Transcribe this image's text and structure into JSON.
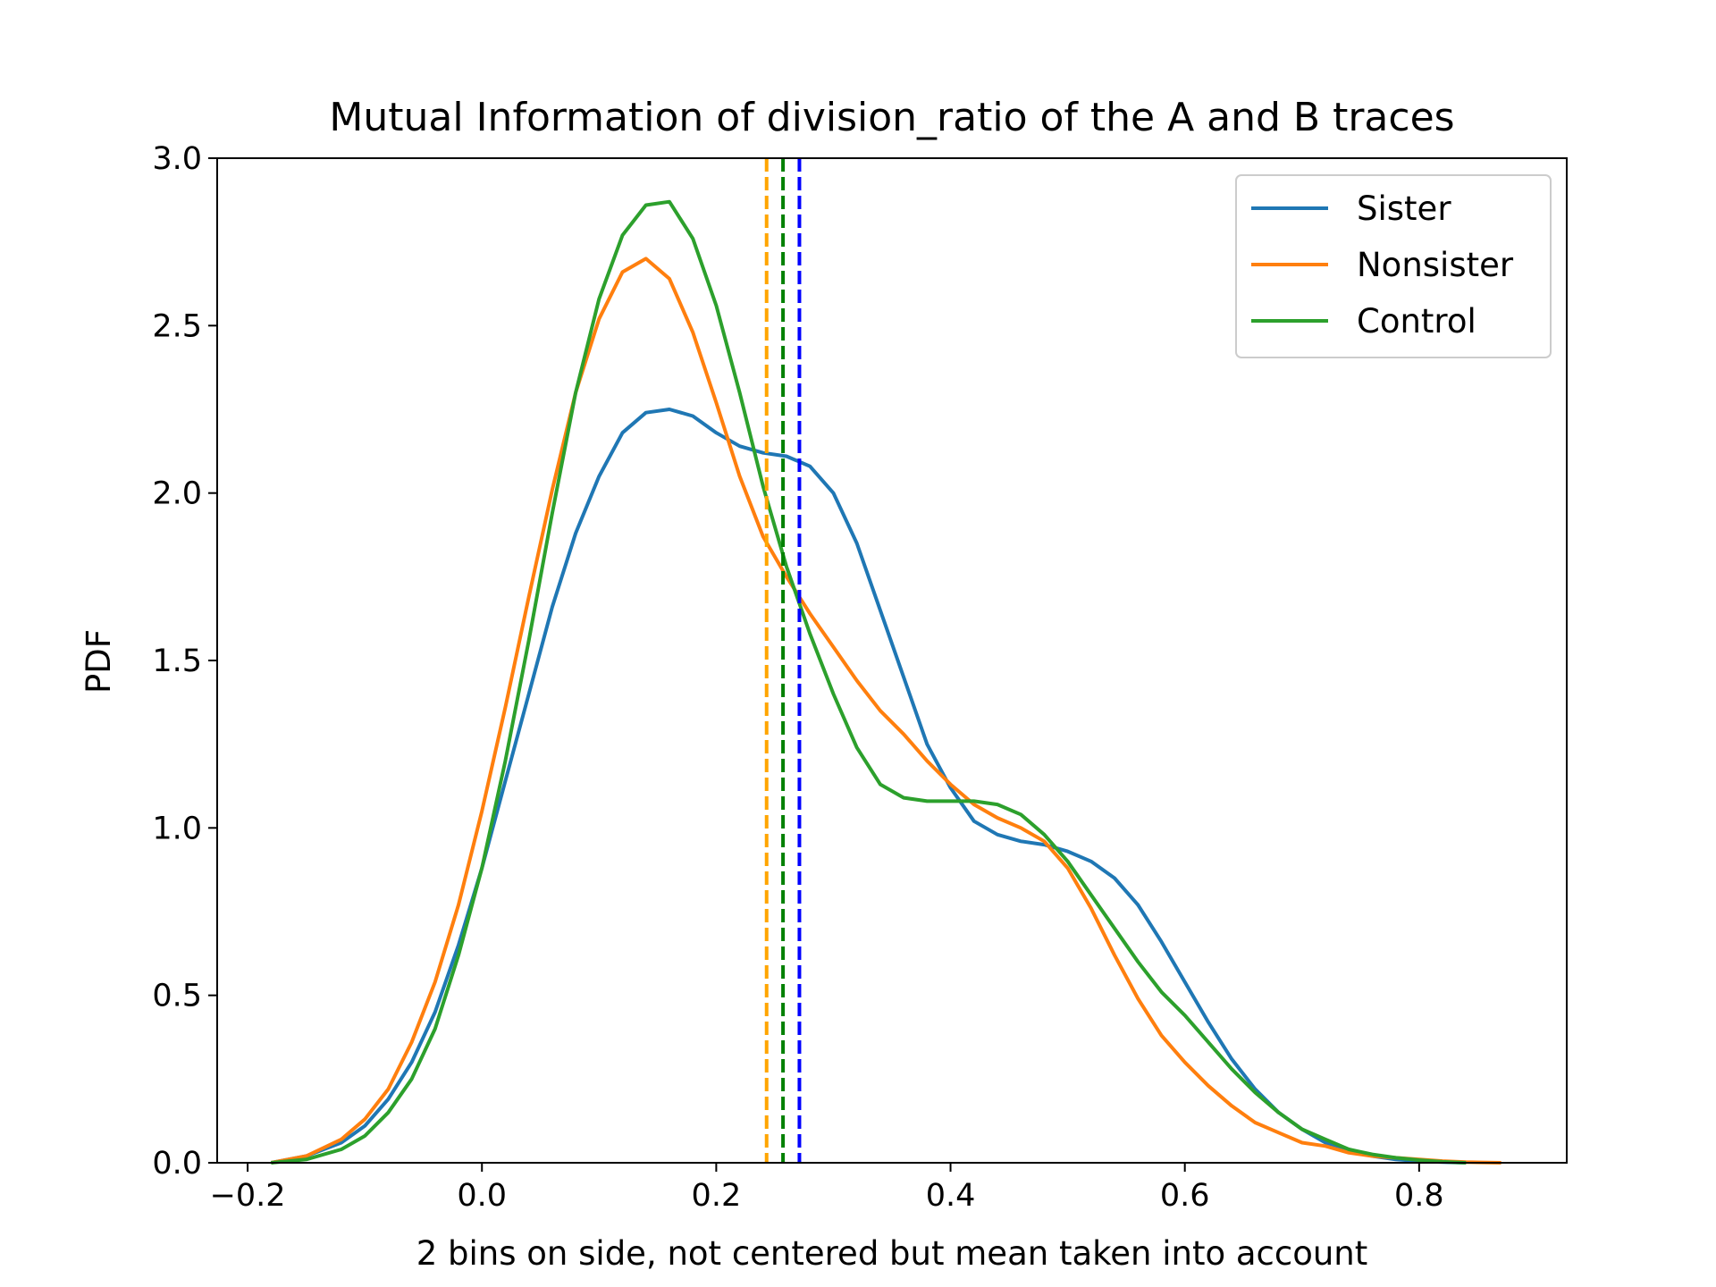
{
  "chart_data": {
    "type": "line",
    "title": "Mutual Information of division_ratio of the A and B traces",
    "xlabel": "2 bins on side, not centered but mean taken into account",
    "ylabel": "PDF",
    "xlim": [
      -0.226,
      0.926
    ],
    "ylim": [
      0.0,
      3.0
    ],
    "xticks": [
      -0.2,
      0.0,
      0.2,
      0.4,
      0.6,
      0.8
    ],
    "xtick_labels": [
      "−0.2",
      "0.0",
      "0.2",
      "0.4",
      "0.6",
      "0.8"
    ],
    "yticks": [
      0.0,
      0.5,
      1.0,
      1.5,
      2.0,
      2.5,
      3.0
    ],
    "ytick_labels": [
      "0.0",
      "0.5",
      "1.0",
      "1.5",
      "2.0",
      "2.5",
      "3.0"
    ],
    "grid": false,
    "legend_position": "top-right",
    "series": [
      {
        "name": "Sister",
        "color": "#1f77b4",
        "x": [
          -0.18,
          -0.15,
          -0.12,
          -0.1,
          -0.08,
          -0.06,
          -0.04,
          -0.02,
          0.0,
          0.02,
          0.04,
          0.06,
          0.08,
          0.1,
          0.12,
          0.14,
          0.16,
          0.18,
          0.2,
          0.22,
          0.24,
          0.26,
          0.28,
          0.3,
          0.32,
          0.34,
          0.36,
          0.38,
          0.4,
          0.42,
          0.44,
          0.46,
          0.48,
          0.5,
          0.52,
          0.54,
          0.56,
          0.58,
          0.6,
          0.62,
          0.64,
          0.66,
          0.68,
          0.7,
          0.72,
          0.74,
          0.76,
          0.78,
          0.8,
          0.82,
          0.84
        ],
        "y": [
          0.0,
          0.02,
          0.06,
          0.11,
          0.19,
          0.3,
          0.45,
          0.65,
          0.88,
          1.14,
          1.4,
          1.66,
          1.88,
          2.05,
          2.18,
          2.24,
          2.25,
          2.23,
          2.18,
          2.14,
          2.12,
          2.11,
          2.08,
          2.0,
          1.85,
          1.65,
          1.45,
          1.25,
          1.12,
          1.02,
          0.98,
          0.96,
          0.95,
          0.93,
          0.9,
          0.85,
          0.77,
          0.66,
          0.54,
          0.42,
          0.31,
          0.22,
          0.15,
          0.1,
          0.06,
          0.04,
          0.02,
          0.01,
          0.005,
          0.002,
          0.0
        ]
      },
      {
        "name": "Nonsister",
        "color": "#ff7f0e",
        "x": [
          -0.18,
          -0.15,
          -0.12,
          -0.1,
          -0.08,
          -0.06,
          -0.04,
          -0.02,
          0.0,
          0.02,
          0.04,
          0.06,
          0.08,
          0.1,
          0.12,
          0.14,
          0.16,
          0.18,
          0.2,
          0.22,
          0.24,
          0.26,
          0.28,
          0.3,
          0.32,
          0.34,
          0.36,
          0.38,
          0.4,
          0.42,
          0.44,
          0.46,
          0.48,
          0.5,
          0.52,
          0.54,
          0.56,
          0.58,
          0.6,
          0.62,
          0.64,
          0.66,
          0.68,
          0.7,
          0.72,
          0.74,
          0.76,
          0.78,
          0.8,
          0.82,
          0.84,
          0.87
        ],
        "y": [
          0.0,
          0.02,
          0.07,
          0.13,
          0.22,
          0.36,
          0.54,
          0.77,
          1.05,
          1.36,
          1.69,
          2.01,
          2.3,
          2.52,
          2.66,
          2.7,
          2.64,
          2.48,
          2.27,
          2.05,
          1.87,
          1.75,
          1.64,
          1.54,
          1.44,
          1.35,
          1.28,
          1.2,
          1.13,
          1.07,
          1.03,
          1.0,
          0.96,
          0.88,
          0.76,
          0.62,
          0.49,
          0.38,
          0.3,
          0.23,
          0.17,
          0.12,
          0.09,
          0.06,
          0.05,
          0.03,
          0.02,
          0.015,
          0.01,
          0.005,
          0.002,
          0.0
        ]
      },
      {
        "name": "Control",
        "color": "#2ca02c",
        "x": [
          -0.18,
          -0.15,
          -0.12,
          -0.1,
          -0.08,
          -0.06,
          -0.04,
          -0.02,
          0.0,
          0.02,
          0.04,
          0.06,
          0.08,
          0.1,
          0.12,
          0.14,
          0.16,
          0.18,
          0.2,
          0.22,
          0.24,
          0.26,
          0.28,
          0.3,
          0.32,
          0.34,
          0.36,
          0.38,
          0.4,
          0.42,
          0.44,
          0.46,
          0.48,
          0.5,
          0.52,
          0.54,
          0.56,
          0.58,
          0.6,
          0.62,
          0.64,
          0.66,
          0.68,
          0.7,
          0.72,
          0.74,
          0.76,
          0.78,
          0.8,
          0.82,
          0.84
        ],
        "y": [
          0.0,
          0.01,
          0.04,
          0.08,
          0.15,
          0.25,
          0.4,
          0.62,
          0.88,
          1.2,
          1.56,
          1.94,
          2.3,
          2.58,
          2.77,
          2.86,
          2.87,
          2.76,
          2.56,
          2.3,
          2.02,
          1.78,
          1.58,
          1.4,
          1.24,
          1.13,
          1.09,
          1.08,
          1.08,
          1.08,
          1.07,
          1.04,
          0.98,
          0.9,
          0.8,
          0.7,
          0.6,
          0.51,
          0.44,
          0.36,
          0.28,
          0.21,
          0.15,
          0.1,
          0.07,
          0.04,
          0.025,
          0.015,
          0.008,
          0.003,
          0.0
        ]
      }
    ],
    "vlines": [
      {
        "name": "Nonsister mean",
        "x": 0.243,
        "color": "#ffa500"
      },
      {
        "name": "Control mean",
        "x": 0.257,
        "color": "#008000"
      },
      {
        "name": "Sister mean",
        "x": 0.271,
        "color": "#0000ff"
      }
    ]
  }
}
